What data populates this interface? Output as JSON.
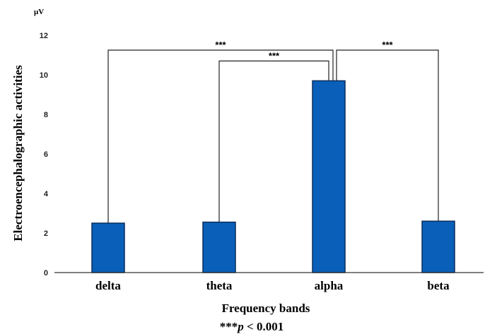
{
  "chart_data": {
    "type": "bar",
    "categories": [
      "delta",
      "theta",
      "alpha",
      "beta"
    ],
    "values": [
      2.5,
      2.55,
      9.7,
      2.6
    ],
    "xlabel": "Frequency bands",
    "ylabel": "Electroencephalographic activities",
    "unit": "μV",
    "ylim": [
      0,
      12
    ],
    "yticks": [
      0,
      2,
      4,
      6,
      8,
      10,
      12
    ],
    "bar_color": "#0a5fb8",
    "bar_edge_color": "#0a2f5e",
    "significance": [
      {
        "from": "delta",
        "to": "alpha",
        "label": "***",
        "level": 11.25
      },
      {
        "from": "theta",
        "to": "alpha",
        "label": "***",
        "level": 10.7
      },
      {
        "from": "alpha",
        "to": "beta",
        "label": "***",
        "level": 11.25
      }
    ],
    "footnote_stars": "***",
    "footnote_p": "p",
    "footnote_rest": " < 0.001",
    "grid": false,
    "legend": "none"
  }
}
